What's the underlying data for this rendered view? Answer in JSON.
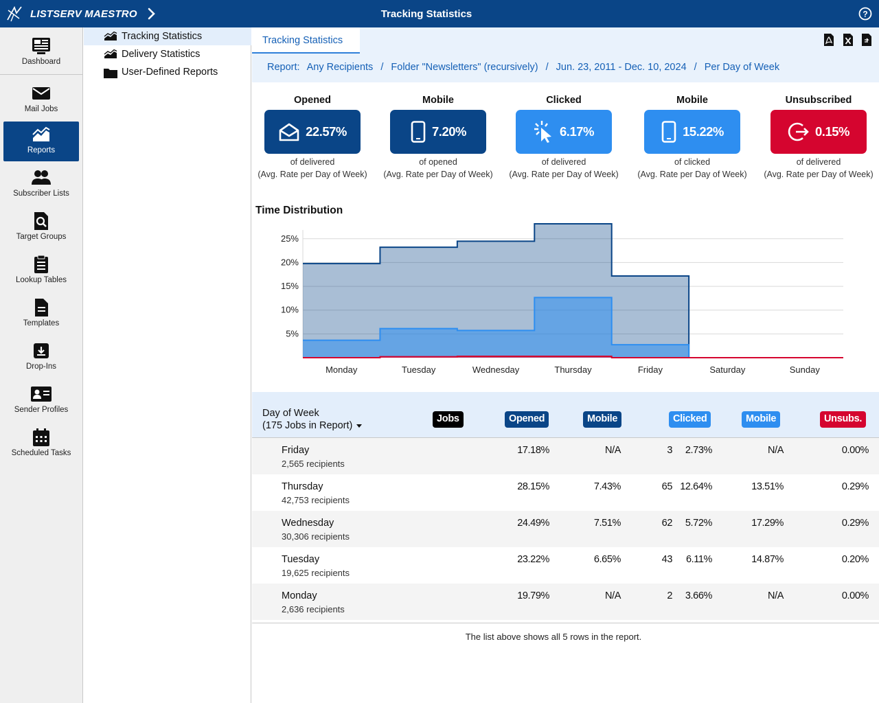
{
  "app": {
    "name": "LISTSERV MAESTRO",
    "page_title": "Tracking Statistics",
    "colors": {
      "brand": "#0a4587",
      "light_blue": "#2e8ef0",
      "red": "#d5052f"
    }
  },
  "nav": [
    {
      "label": "Dashboard",
      "icon": "dashboard-icon"
    },
    {
      "label": "Mail Jobs",
      "icon": "envelope-icon"
    },
    {
      "label": "Reports",
      "icon": "chart-icon",
      "active": true
    },
    {
      "label": "Subscriber Lists",
      "icon": "people-icon"
    },
    {
      "label": "Target Groups",
      "icon": "search-document-icon"
    },
    {
      "label": "Lookup Tables",
      "icon": "clipboard-icon"
    },
    {
      "label": "Templates",
      "icon": "document-icon"
    },
    {
      "label": "Drop-Ins",
      "icon": "drop-in-icon"
    },
    {
      "label": "Sender Profiles",
      "icon": "id-card-icon"
    },
    {
      "label": "Scheduled Tasks",
      "icon": "calendar-icon"
    }
  ],
  "tree": [
    {
      "label": "Tracking Statistics",
      "icon": "chart-icon",
      "selected": true
    },
    {
      "label": "Delivery Statistics",
      "icon": "chart-icon"
    },
    {
      "label": "User-Defined Reports",
      "icon": "folder-icon"
    }
  ],
  "tab": {
    "label": "Tracking Statistics"
  },
  "breadcrumb": {
    "prefix": "Report:",
    "items": [
      "Any Recipients",
      "Folder \"Newsletters\" (recursively)",
      "Jun. 23, 2011 - Dec. 10, 2024",
      "Per Day of Week"
    ],
    "separator": "/"
  },
  "stats": [
    {
      "title": "Opened",
      "value": "22.57%",
      "sub1": "of delivered",
      "sub2": "(Avg. Rate per Day of Week)",
      "color": "#0a4587",
      "icon": "open-envelope-icon"
    },
    {
      "title": "Mobile",
      "value": "7.20%",
      "sub1": "of opened",
      "sub2": "(Avg. Rate per Day of Week)",
      "color": "#0a4587",
      "icon": "mobile-phone-icon"
    },
    {
      "title": "Clicked",
      "value": "6.17%",
      "sub1": "of delivered",
      "sub2": "(Avg. Rate per Day of Week)",
      "color": "#2e8ef0",
      "icon": "cursor-click-icon"
    },
    {
      "title": "Mobile",
      "value": "15.22%",
      "sub1": "of clicked",
      "sub2": "(Avg. Rate per Day of Week)",
      "color": "#2e8ef0",
      "icon": "mobile-phone-icon"
    },
    {
      "title": "Unsubscribed",
      "value": "0.15%",
      "sub1": "of delivered",
      "sub2": "(Avg. Rate per Day of Week)",
      "color": "#d5052f",
      "icon": "sign-out-icon"
    }
  ],
  "chart_title": "Time Distribution",
  "chart_data": {
    "type": "area",
    "categories": [
      "Monday",
      "Tuesday",
      "Wednesday",
      "Thursday",
      "Friday",
      "Saturday",
      "Sunday"
    ],
    "yticks": [
      "5%",
      "10%",
      "15%",
      "20%",
      "25%"
    ],
    "ylim": [
      0,
      28
    ],
    "grid": true,
    "series": [
      {
        "values": [
          19.79,
          23.22,
          24.49,
          28.15,
          17.18,
          0,
          0
        ],
        "color": "#0a4587"
      },
      {
        "values": [
          3.66,
          6.11,
          5.72,
          12.64,
          2.73,
          0,
          0
        ],
        "color": "#2e8ef0"
      },
      {
        "values": [
          0.0,
          0.2,
          0.29,
          0.29,
          0.0,
          0,
          0
        ],
        "color": "#d5052f"
      }
    ]
  },
  "table": {
    "header_label": "Day of Week",
    "header_sub": "(175 Jobs in Report)",
    "columns": [
      {
        "label": "Jobs",
        "color": "#000000"
      },
      {
        "label": "Opened",
        "color": "#0a4587"
      },
      {
        "label": "Mobile",
        "color": "#0a4587"
      },
      {
        "label": "Clicked",
        "color": "#2e8ef0"
      },
      {
        "label": "Mobile",
        "color": "#2e8ef0"
      },
      {
        "label": "Unsubs.",
        "color": "#d5052f"
      }
    ],
    "rows": [
      {
        "day": "Friday",
        "recipients": "2,565 recipients",
        "jobs": "3",
        "opened": "17.18%",
        "mobile_opened": "N/A",
        "clicked": "2.73%",
        "mobile_clicked": "N/A",
        "unsubs": "0.00%"
      },
      {
        "day": "Thursday",
        "recipients": "42,753 recipients",
        "jobs": "65",
        "opened": "28.15%",
        "mobile_opened": "7.43%",
        "clicked": "12.64%",
        "mobile_clicked": "13.51%",
        "unsubs": "0.29%"
      },
      {
        "day": "Wednesday",
        "recipients": "30,306 recipients",
        "jobs": "62",
        "opened": "24.49%",
        "mobile_opened": "7.51%",
        "clicked": "5.72%",
        "mobile_clicked": "17.29%",
        "unsubs": "0.29%"
      },
      {
        "day": "Tuesday",
        "recipients": "19,625 recipients",
        "jobs": "43",
        "opened": "23.22%",
        "mobile_opened": "6.65%",
        "clicked": "6.11%",
        "mobile_clicked": "14.87%",
        "unsubs": "0.20%"
      },
      {
        "day": "Monday",
        "recipients": "2,636 recipients",
        "jobs": "2",
        "opened": "19.79%",
        "mobile_opened": "N/A",
        "clicked": "3.66%",
        "mobile_clicked": "N/A",
        "unsubs": "0.00%"
      }
    ],
    "footer_note": "The list above shows all 5 rows in the report."
  }
}
